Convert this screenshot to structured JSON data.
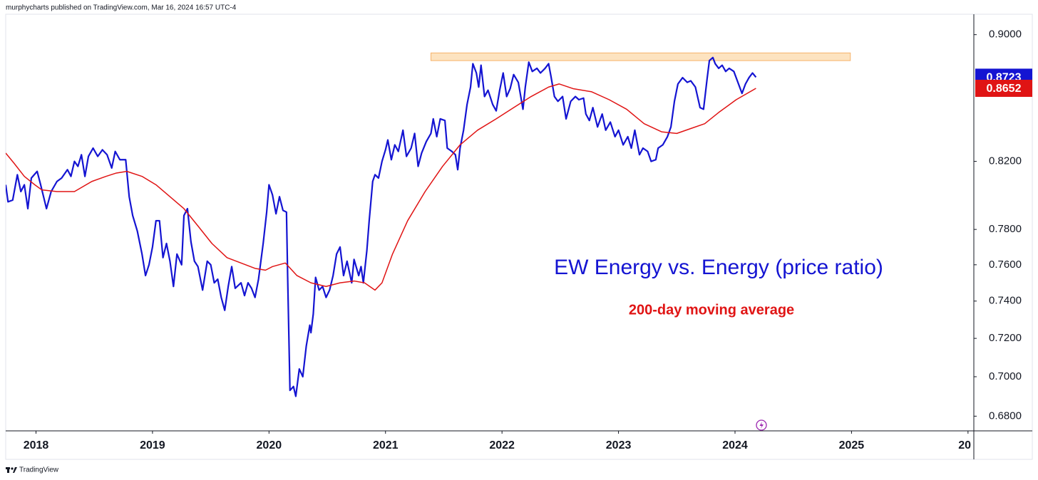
{
  "chart_data": {
    "type": "line",
    "header": "murphycharts published on TradingView.com, Mar 16, 2024 16:57 UTC-4",
    "footer": "TradingView",
    "annotations": [
      {
        "text": "EW Energy vs. Energy (price ratio)",
        "color": "#1414d2"
      },
      {
        "text": "200-day moving average",
        "color": "#e01414"
      }
    ],
    "log_scale": true,
    "grid": false,
    "xlim": [
      2017.74,
      2026.05
    ],
    "xticks": [
      2018,
      2019,
      2020,
      2021,
      2022,
      2023,
      2024,
      2025,
      {
        "value": 2026,
        "label": "20"
      }
    ],
    "ylim": [
      0.6727,
      0.9136
    ],
    "yticks": [
      {
        "value": 0.9,
        "label": "0.9000"
      },
      {
        "value": 0.82,
        "label": "0.8200"
      },
      {
        "value": 0.78,
        "label": "0.7800"
      },
      {
        "value": 0.76,
        "label": "0.7600"
      },
      {
        "value": 0.74,
        "label": "0.7400"
      },
      {
        "value": 0.72,
        "label": "0.7200"
      },
      {
        "value": 0.7,
        "label": "0.7000"
      },
      {
        "value": 0.68,
        "label": "0.6800"
      }
    ],
    "band": {
      "x": [
        2021.39,
        2024.99
      ],
      "y": [
        0.883,
        0.888
      ],
      "color": "#fde3c0"
    },
    "series": [
      {
        "color": "#1414d2",
        "x": [
          2017.74,
          2017.76,
          2017.8,
          2017.84,
          2017.87,
          2017.9,
          2017.93,
          2017.96,
          2018.01,
          2018.04,
          2018.09,
          2018.13,
          2018.18,
          2018.22,
          2018.27,
          2018.3,
          2018.33,
          2018.36,
          2018.39,
          2018.42,
          2018.45,
          2018.49,
          2018.53,
          2018.57,
          2018.61,
          2018.65,
          2018.68,
          2018.72,
          2018.77,
          2018.8,
          2018.83,
          2018.87,
          2018.91,
          2018.94,
          2018.97,
          2019.0,
          2019.03,
          2019.06,
          2019.09,
          2019.12,
          2019.15,
          2019.18,
          2019.21,
          2019.25,
          2019.27,
          2019.3,
          2019.33,
          2019.36,
          2019.39,
          2019.43,
          2019.47,
          2019.5,
          2019.53,
          2019.56,
          2019.59,
          2019.62,
          2019.65,
          2019.68,
          2019.71,
          2019.76,
          2019.79,
          2019.82,
          2019.85,
          2019.88,
          2019.91,
          2019.95,
          2019.98,
          2020.0,
          2020.03,
          2020.06,
          2020.09,
          2020.12,
          2020.15,
          2020.16,
          2020.18,
          2020.21,
          2020.23,
          2020.26,
          2020.29,
          2020.32,
          2020.35,
          2020.36,
          2020.38,
          2020.4,
          2020.43,
          2020.46,
          2020.49,
          2020.52,
          2020.55,
          2020.58,
          2020.61,
          2020.64,
          2020.67,
          2020.71,
          2020.73,
          2020.77,
          2020.79,
          2020.81,
          2020.84,
          2020.86,
          2020.89,
          2020.91,
          2020.94,
          2020.97,
          2021.0,
          2021.02,
          2021.05,
          2021.08,
          2021.11,
          2021.15,
          2021.18,
          2021.22,
          2021.25,
          2021.28,
          2021.31,
          2021.35,
          2021.39,
          2021.41,
          2021.44,
          2021.47,
          2021.51,
          2021.53,
          2021.57,
          2021.6,
          2021.62,
          2021.64,
          2021.67,
          2021.7,
          2021.73,
          2021.75,
          2021.78,
          2021.8,
          2021.82,
          2021.85,
          2021.88,
          2021.92,
          2021.95,
          2021.98,
          2022.01,
          2022.04,
          2022.07,
          2022.1,
          2022.14,
          2022.18,
          2022.2,
          2022.23,
          2022.26,
          2022.3,
          2022.33,
          2022.37,
          2022.4,
          2022.42,
          2022.45,
          2022.48,
          2022.52,
          2022.55,
          2022.59,
          2022.63,
          2022.66,
          2022.7,
          2022.72,
          2022.75,
          2022.78,
          2022.82,
          2022.86,
          2022.89,
          2022.93,
          2022.97,
          2023.0,
          2023.04,
          2023.08,
          2023.11,
          2023.14,
          2023.18,
          2023.21,
          2023.25,
          2023.28,
          2023.32,
          2023.34,
          2023.38,
          2023.42,
          2023.45,
          2023.48,
          2023.51,
          2023.55,
          2023.59,
          2023.62,
          2023.66,
          2023.7,
          2023.73,
          2023.76,
          2023.78,
          2023.81,
          2023.83,
          2023.86,
          2023.89,
          2023.92,
          2023.95,
          2023.99,
          2024.02,
          2024.06,
          2024.09,
          2024.12,
          2024.15,
          2024.18
        ],
        "values": [
          0.806,
          0.796,
          0.797,
          0.812,
          0.802,
          0.806,
          0.792,
          0.81,
          0.814,
          0.806,
          0.792,
          0.802,
          0.808,
          0.81,
          0.815,
          0.811,
          0.82,
          0.817,
          0.824,
          0.811,
          0.823,
          0.828,
          0.823,
          0.827,
          0.824,
          0.816,
          0.826,
          0.821,
          0.821,
          0.799,
          0.788,
          0.779,
          0.766,
          0.754,
          0.76,
          0.77,
          0.785,
          0.785,
          0.764,
          0.772,
          0.762,
          0.748,
          0.766,
          0.76,
          0.788,
          0.792,
          0.773,
          0.762,
          0.759,
          0.746,
          0.762,
          0.76,
          0.75,
          0.752,
          0.742,
          0.735,
          0.748,
          0.759,
          0.747,
          0.75,
          0.743,
          0.75,
          0.747,
          0.742,
          0.752,
          0.772,
          0.79,
          0.806,
          0.8,
          0.789,
          0.799,
          0.791,
          0.79,
          0.754,
          0.693,
          0.695,
          0.69,
          0.704,
          0.7,
          0.716,
          0.727,
          0.723,
          0.733,
          0.753,
          0.746,
          0.748,
          0.742,
          0.746,
          0.754,
          0.766,
          0.77,
          0.754,
          0.762,
          0.75,
          0.763,
          0.754,
          0.759,
          0.75,
          0.768,
          0.785,
          0.808,
          0.812,
          0.81,
          0.82,
          0.827,
          0.833,
          0.821,
          0.83,
          0.826,
          0.839,
          0.823,
          0.828,
          0.837,
          0.817,
          0.825,
          0.832,
          0.837,
          0.846,
          0.835,
          0.846,
          0.845,
          0.828,
          0.826,
          0.824,
          0.815,
          0.828,
          0.839,
          0.855,
          0.866,
          0.881,
          0.875,
          0.866,
          0.88,
          0.86,
          0.864,
          0.855,
          0.851,
          0.864,
          0.875,
          0.86,
          0.865,
          0.874,
          0.869,
          0.852,
          0.866,
          0.882,
          0.876,
          0.878,
          0.875,
          0.878,
          0.881,
          0.873,
          0.86,
          0.857,
          0.86,
          0.846,
          0.857,
          0.86,
          0.858,
          0.859,
          0.849,
          0.845,
          0.853,
          0.841,
          0.849,
          0.839,
          0.844,
          0.835,
          0.839,
          0.83,
          0.835,
          0.828,
          0.839,
          0.824,
          0.828,
          0.826,
          0.82,
          0.821,
          0.828,
          0.83,
          0.835,
          0.841,
          0.857,
          0.868,
          0.872,
          0.869,
          0.87,
          0.866,
          0.853,
          0.852,
          0.871,
          0.883,
          0.885,
          0.881,
          0.878,
          0.88,
          0.876,
          0.878,
          0.876,
          0.87,
          0.862,
          0.868,
          0.872,
          0.875,
          0.8723
        ]
      },
      {
        "color": "#e01414",
        "x": [
          2017.74,
          2017.81,
          2017.9,
          2017.99,
          2018.05,
          2018.18,
          2018.33,
          2018.48,
          2018.6,
          2018.69,
          2018.78,
          2018.91,
          2019.03,
          2019.15,
          2019.27,
          2019.39,
          2019.51,
          2019.64,
          2019.76,
          2019.88,
          2019.97,
          2020.03,
          2020.14,
          2020.24,
          2020.36,
          2020.49,
          2020.61,
          2020.73,
          2020.82,
          2020.91,
          2020.97,
          2021.06,
          2021.19,
          2021.34,
          2021.49,
          2021.64,
          2021.79,
          2021.95,
          2022.1,
          2022.25,
          2022.4,
          2022.49,
          2022.61,
          2022.77,
          2022.92,
          2023.07,
          2023.22,
          2023.37,
          2023.5,
          2023.62,
          2023.74,
          2023.86,
          2024.01,
          2024.18
        ],
        "values": [
          0.825,
          0.819,
          0.811,
          0.806,
          0.803,
          0.802,
          0.802,
          0.808,
          0.811,
          0.813,
          0.814,
          0.811,
          0.806,
          0.799,
          0.792,
          0.782,
          0.772,
          0.764,
          0.761,
          0.758,
          0.757,
          0.759,
          0.761,
          0.754,
          0.75,
          0.748,
          0.75,
          0.751,
          0.75,
          0.746,
          0.75,
          0.766,
          0.785,
          0.802,
          0.817,
          0.83,
          0.839,
          0.846,
          0.853,
          0.86,
          0.866,
          0.868,
          0.865,
          0.863,
          0.858,
          0.852,
          0.843,
          0.838,
          0.837,
          0.84,
          0.843,
          0.85,
          0.858,
          0.8652
        ]
      }
    ]
  }
}
